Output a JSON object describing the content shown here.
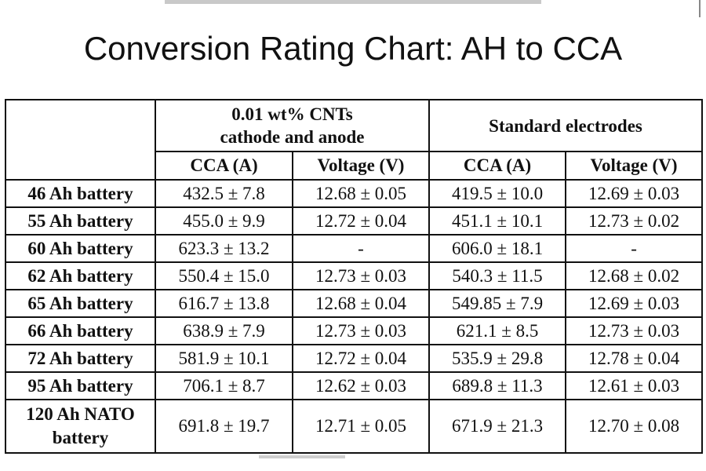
{
  "title": "Conversion Rating Chart: AH to CCA",
  "table": {
    "group_headers": [
      [
        "0.01 wt% CNTs",
        "cathode and anode"
      ],
      [
        "Standard electrodes"
      ]
    ],
    "sub_headers": [
      "CCA (A)",
      "Voltage (V)",
      "CCA (A)",
      "Voltage (V)"
    ],
    "rows": [
      [
        "46 Ah battery",
        "432.5 ± 7.8",
        "12.68 ± 0.05",
        "419.5 ± 10.0",
        "12.69 ± 0.03"
      ],
      [
        "55 Ah battery",
        "455.0 ± 9.9",
        "12.72 ± 0.04",
        "451.1 ± 10.1",
        "12.73 ± 0.02"
      ],
      [
        "60 Ah battery",
        "623.3 ± 13.2",
        "-",
        "606.0 ± 18.1",
        "-"
      ],
      [
        "62 Ah battery",
        "550.4 ± 15.0",
        "12.73 ± 0.03",
        "540.3 ± 11.5",
        "12.68 ± 0.02"
      ],
      [
        "65 Ah battery",
        "616.7 ± 13.8",
        "12.68 ± 0.04",
        "549.85 ± 7.9",
        "12.69 ± 0.03"
      ],
      [
        "66 Ah battery",
        "638.9 ± 7.9",
        "12.73 ± 0.03",
        "621.1 ± 8.5",
        "12.73 ± 0.03"
      ],
      [
        "72 Ah battery",
        "581.9 ± 10.1",
        "12.72 ± 0.04",
        "535.9 ± 29.8",
        "12.78 ± 0.04"
      ],
      [
        "95 Ah battery",
        "706.1 ± 8.7",
        "12.62 ± 0.03",
        "689.8 ± 11.3",
        "12.61 ± 0.03"
      ],
      [
        "120 Ah NATO battery",
        "691.8 ± 19.7",
        "12.71 ± 0.05",
        "671.9 ± 21.3",
        "12.70 ± 0.08"
      ]
    ]
  }
}
